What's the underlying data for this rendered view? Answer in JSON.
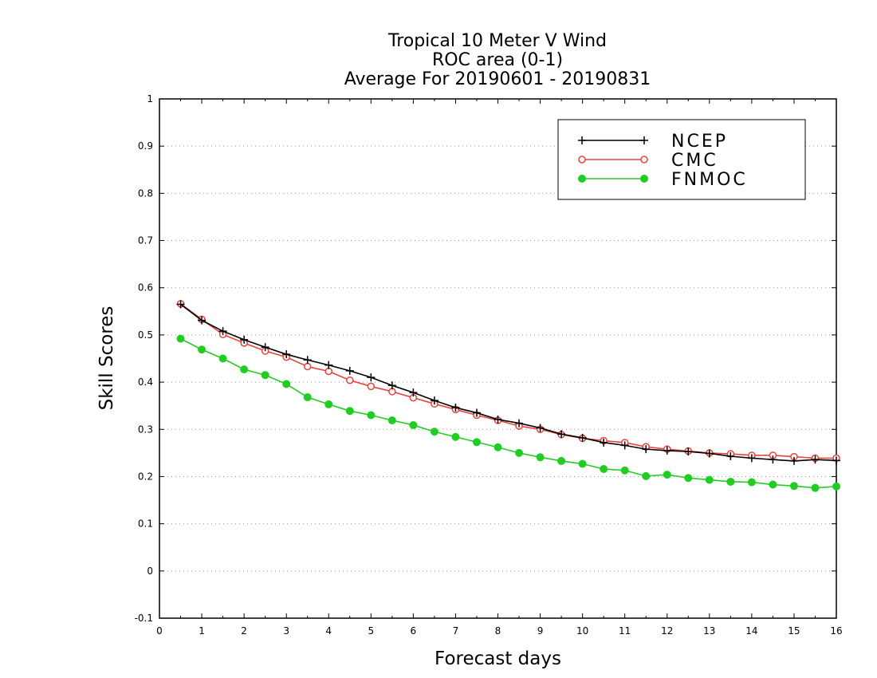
{
  "chart_data": {
    "type": "line",
    "title": [
      "Tropical 10 Meter V Wind",
      "ROC area (0-1)",
      "Average For 20190601 - 20190831"
    ],
    "xlabel": "Forecast days",
    "ylabel": "Skill Scores",
    "xlim": [
      0,
      16
    ],
    "ylim": [
      -0.1,
      1
    ],
    "xticks": [
      "0",
      "1",
      "2",
      "3",
      "4",
      "5",
      "6",
      "7",
      "8",
      "9",
      "10",
      "11",
      "12",
      "13",
      "14",
      "15",
      "16"
    ],
    "yticks": [
      "-0.1",
      "0",
      "0.1",
      "0.2",
      "0.3",
      "0.4",
      "0.5",
      "0.6",
      "0.7",
      "0.8",
      "0.9",
      "1"
    ],
    "grid": "dotted horizontal",
    "legend_position": "top-right",
    "x": [
      0.5,
      1,
      1.5,
      2,
      2.5,
      3,
      3.5,
      4,
      4.5,
      5,
      5.5,
      6,
      6.5,
      7,
      7.5,
      8,
      8.5,
      9,
      9.5,
      10,
      10.5,
      11,
      11.5,
      12,
      12.5,
      13,
      13.5,
      14,
      14.5,
      15,
      15.5,
      16
    ],
    "series": [
      {
        "name": "NCEP",
        "color": "#000000",
        "marker": "plus",
        "values": [
          0.565,
          0.531,
          0.508,
          0.49,
          0.474,
          0.459,
          0.447,
          0.436,
          0.424,
          0.41,
          0.393,
          0.378,
          0.361,
          0.346,
          0.335,
          0.321,
          0.313,
          0.303,
          0.29,
          0.282,
          0.272,
          0.266,
          0.258,
          0.255,
          0.253,
          0.249,
          0.243,
          0.239,
          0.236,
          0.233,
          0.236,
          0.234
        ]
      },
      {
        "name": "CMC",
        "color": "#e8423f",
        "marker": "open-circle",
        "values": [
          0.566,
          0.533,
          0.501,
          0.483,
          0.466,
          0.453,
          0.433,
          0.423,
          0.404,
          0.391,
          0.38,
          0.367,
          0.354,
          0.342,
          0.33,
          0.319,
          0.307,
          0.3,
          0.289,
          0.281,
          0.276,
          0.272,
          0.263,
          0.258,
          0.254,
          0.25,
          0.248,
          0.245,
          0.245,
          0.242,
          0.239,
          0.239
        ]
      },
      {
        "name": "FNMOC",
        "color": "#22cc22",
        "marker": "filled-circle",
        "values": [
          0.492,
          0.469,
          0.45,
          0.427,
          0.415,
          0.396,
          0.368,
          0.353,
          0.339,
          0.33,
          0.319,
          0.309,
          0.295,
          0.284,
          0.273,
          0.262,
          0.25,
          0.241,
          0.233,
          0.227,
          0.216,
          0.213,
          0.201,
          0.204,
          0.197,
          0.193,
          0.189,
          0.188,
          0.183,
          0.18,
          0.176,
          0.179
        ]
      }
    ]
  }
}
